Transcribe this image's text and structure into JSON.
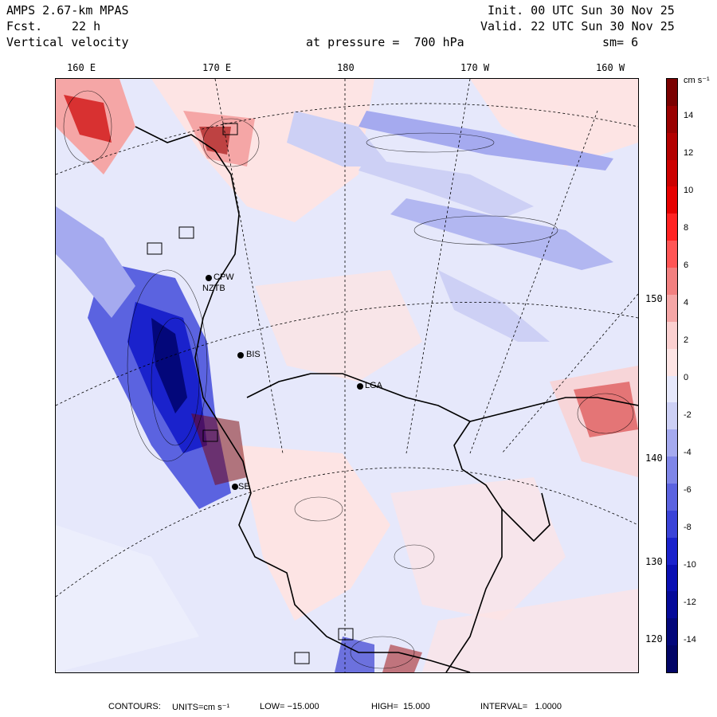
{
  "header": {
    "model": "AMPS 2.67-km MPAS",
    "fcst_label": "Fcst.",
    "fcst_value": "22 h",
    "field": "Vertical velocity",
    "init": "Init. 00 UTC Sun 30 Nov 25",
    "valid": "Valid. 22 UTC Sun 30 Nov 25",
    "pressure": "at pressure =  700 hPa",
    "smoothing": "sm= 6"
  },
  "top_longitudes": [
    "160 E",
    "170 E",
    "180",
    "170 W",
    "160 W"
  ],
  "right_longitudes": [
    "150 W",
    "140 W",
    "130 W",
    "120 W"
  ],
  "stations": [
    "CPW",
    "NZTB",
    "BIS",
    "SE",
    "LGA"
  ],
  "colorbar": {
    "units": "cm s⁻¹",
    "labels": [
      "14",
      "12",
      "10",
      "8",
      "6",
      "4",
      "2",
      "0",
      "-2",
      "-4",
      "-6",
      "-8",
      "-10",
      "-12",
      "-14"
    ],
    "colors": [
      "#7a0000",
      "#990000",
      "#b30000",
      "#cc0000",
      "#e60000",
      "#ff2222",
      "#ff5555",
      "#f28080",
      "#f5a6a6",
      "#fbd0d0",
      "#fde4e4",
      "#e6e8fb",
      "#cdd0f5",
      "#a5aaef",
      "#7f86e8",
      "#5b63e0",
      "#3a43d8",
      "#1a22cc",
      "#0a10b3",
      "#050a99",
      "#03077a",
      "#020566"
    ]
  },
  "footer": {
    "contours": "CONTOURS:",
    "units": "UNITS=cm s⁻¹",
    "low": "LOW= −15.000",
    "high": "HIGH=  15.000",
    "interval": "INTERVAL=   1.0000"
  }
}
